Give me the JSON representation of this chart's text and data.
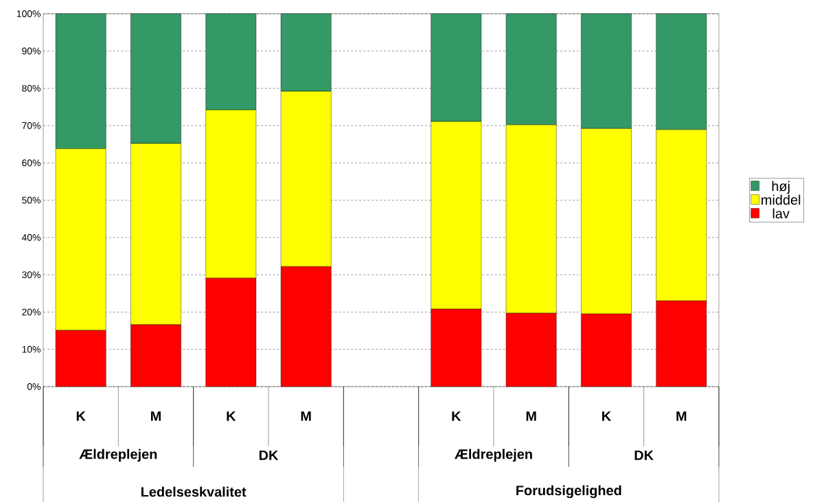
{
  "chart_data": {
    "type": "bar",
    "stacked": true,
    "categories": [
      "K",
      "M",
      "K",
      "M",
      null,
      "K",
      "M",
      "K",
      "M"
    ],
    "series": [
      {
        "name": "lav",
        "color": "#ff0000",
        "values": [
          15.1,
          16.6,
          29.1,
          32.2,
          null,
          20.8,
          19.7,
          19.5,
          23.0
        ]
      },
      {
        "name": "middel",
        "color": "#ffff00",
        "values": [
          48.7,
          48.6,
          45.1,
          47.0,
          null,
          50.3,
          50.5,
          49.7,
          45.9
        ]
      },
      {
        "name": "høj",
        "color": "#339966",
        "values": [
          36.2,
          34.8,
          25.8,
          20.8,
          null,
          28.9,
          29.8,
          30.8,
          31.1
        ]
      }
    ],
    "ylim": [
      0,
      100
    ],
    "yticks": [
      {
        "value": 0,
        "label": "0%"
      },
      {
        "value": 10,
        "label": "10%"
      },
      {
        "value": 20,
        "label": "20%"
      },
      {
        "value": 30,
        "label": "30%"
      },
      {
        "value": 40,
        "label": "40%"
      },
      {
        "value": 50,
        "label": "50%"
      },
      {
        "value": 60,
        "label": "60%"
      },
      {
        "value": 70,
        "label": "70%"
      },
      {
        "value": 80,
        "label": "80%"
      },
      {
        "value": 90,
        "label": "90%"
      },
      {
        "value": 100,
        "label": "100%"
      }
    ],
    "grid": "y",
    "legend": "right",
    "annotations": [
      "Ældreplejen",
      "DK",
      "Ældreplejen",
      "DK",
      "Ledelseskvalitet",
      "Forudsigelighed"
    ]
  }
}
